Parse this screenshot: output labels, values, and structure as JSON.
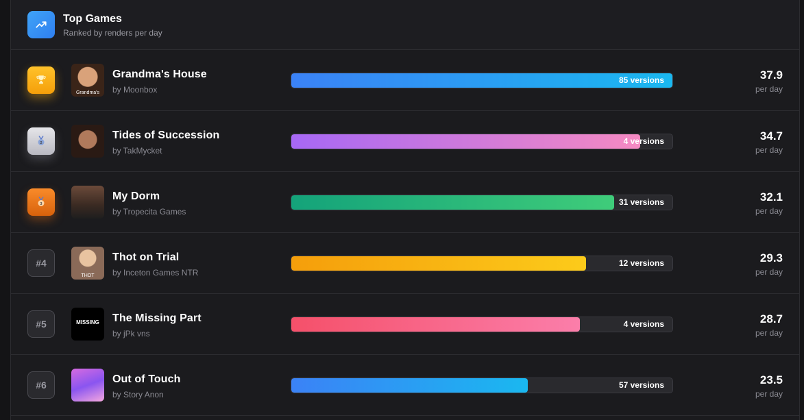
{
  "header": {
    "title": "Top Games",
    "subtitle": "Ranked by renders per day",
    "icon": "trending-up-icon"
  },
  "per_day_label": "per day",
  "games": [
    {
      "rank_label": "",
      "badge": "trophy-icon",
      "name": "Grandma's House",
      "author": "by Moonbox",
      "versions": "85 versions",
      "value": "37.9",
      "fill_fraction": 1.0,
      "gradient": [
        "#3b82f6",
        "#1ab8f0"
      ],
      "thumb_text": "Grandma's"
    },
    {
      "rank_label": "",
      "badge": "silver-medal-icon",
      "name": "Tides of Succession",
      "author": "by TakMycket",
      "versions": "4 versions",
      "value": "34.7",
      "fill_fraction": 0.915,
      "gradient": [
        "#a768f5",
        "#f58ac2"
      ],
      "thumb_text": ""
    },
    {
      "rank_label": "",
      "badge": "bronze-medal-icon",
      "name": "My Dorm",
      "author": "by Tropecita Games",
      "versions": "31 versions",
      "value": "32.1",
      "fill_fraction": 0.847,
      "gradient": [
        "#14a37a",
        "#3fcc7a"
      ],
      "thumb_text": ""
    },
    {
      "rank_label": "#4",
      "badge": "rank",
      "name": "Thot on Trial",
      "author": "by Inceton Games NTR",
      "versions": "12 versions",
      "value": "29.3",
      "fill_fraction": 0.773,
      "gradient": [
        "#f59e0b",
        "#fccb1a"
      ],
      "thumb_text": "THOT"
    },
    {
      "rank_label": "#5",
      "badge": "rank",
      "name": "The Missing Part",
      "author": "by jPk vns",
      "versions": "4 versions",
      "value": "28.7",
      "fill_fraction": 0.757,
      "gradient": [
        "#f5506a",
        "#fb7eaa"
      ],
      "thumb_text": "MISSING"
    },
    {
      "rank_label": "#6",
      "badge": "rank",
      "name": "Out of Touch",
      "author": "by Story Anon",
      "versions": "57 versions",
      "value": "23.5",
      "fill_fraction": 0.62,
      "gradient": [
        "#3b82f6",
        "#1ab8f0"
      ],
      "thumb_text": ""
    }
  ]
}
